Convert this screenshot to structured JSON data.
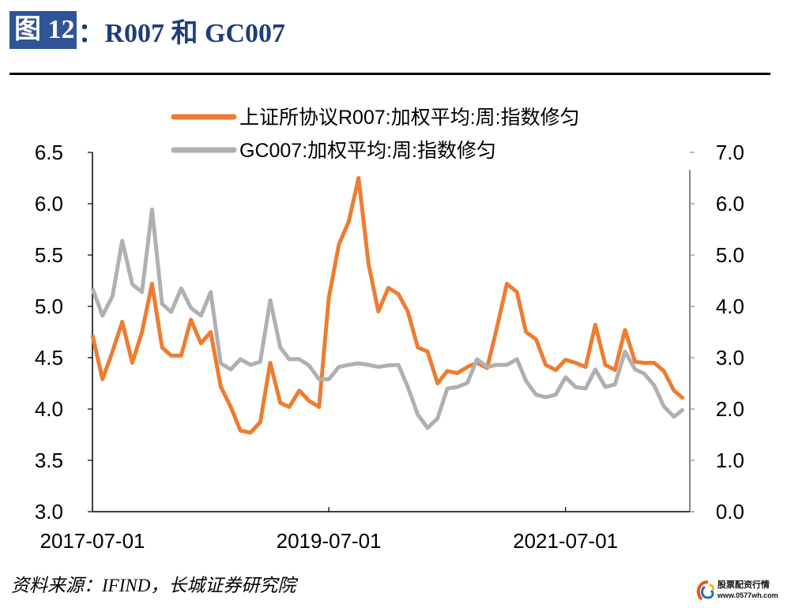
{
  "title": {
    "label": "图 12",
    "text": "：R007 和 GC007"
  },
  "source": "资料来源：IFIND，长城证券研究院",
  "logo": {
    "name": "股票配资行情",
    "url": "www.0577wh.com"
  },
  "colors": {
    "orange": "#ED7D31",
    "gray": "#B0B0B0",
    "title_bg": "#2F5597",
    "title_text": "#1F3D7A"
  },
  "chart_data": {
    "type": "line",
    "title": "",
    "legend_position": "top",
    "grid": false,
    "x_ticks": [
      "2017-07-01",
      "2019-07-01",
      "2021-07-01"
    ],
    "xlim": [
      "2017-07-01",
      "2022-07-20"
    ],
    "y_left": {
      "lim": [
        3.0,
        6.5
      ],
      "ticks": [
        "3.0",
        "3.5",
        "4.0",
        "4.5",
        "5.0",
        "5.5",
        "6.0",
        "6.5"
      ]
    },
    "y_right": {
      "lim": [
        0.0,
        7.0
      ],
      "ticks": [
        "0.0",
        "1.0",
        "2.0",
        "3.0",
        "4.0",
        "5.0",
        "6.0",
        "7.0"
      ]
    },
    "x": [
      "2017-07-01",
      "2017-08-01",
      "2017-09-01",
      "2017-10-01",
      "2017-11-01",
      "2017-12-01",
      "2018-01-01",
      "2018-02-01",
      "2018-03-01",
      "2018-04-01",
      "2018-05-01",
      "2018-06-01",
      "2018-07-01",
      "2018-08-01",
      "2018-09-01",
      "2018-10-01",
      "2018-11-01",
      "2018-12-01",
      "2019-01-01",
      "2019-02-01",
      "2019-03-01",
      "2019-04-01",
      "2019-05-01",
      "2019-06-01",
      "2019-07-01",
      "2019-08-01",
      "2019-09-01",
      "2019-10-01",
      "2019-11-01",
      "2019-12-01",
      "2020-01-01",
      "2020-02-01",
      "2020-03-01",
      "2020-04-01",
      "2020-05-01",
      "2020-06-01",
      "2020-07-01",
      "2020-08-01",
      "2020-09-01",
      "2020-10-01",
      "2020-11-01",
      "2020-12-01",
      "2021-01-01",
      "2021-02-01",
      "2021-03-01",
      "2021-04-01",
      "2021-05-01",
      "2021-06-01",
      "2021-07-01",
      "2021-08-01",
      "2021-09-01",
      "2021-10-01",
      "2021-11-01",
      "2021-12-01",
      "2022-01-01",
      "2022-02-01",
      "2022-03-01",
      "2022-04-01",
      "2022-05-01",
      "2022-06-01",
      "2022-07-01"
    ],
    "series": [
      {
        "name": "上证所协议R007:加权平均:周:指数修匀",
        "axis": "left",
        "color": "#ED7D31",
        "values": [
          4.72,
          4.29,
          4.56,
          4.85,
          4.45,
          4.75,
          5.22,
          4.6,
          4.52,
          4.52,
          4.87,
          4.64,
          4.75,
          4.22,
          4.02,
          3.79,
          3.77,
          3.87,
          4.45,
          4.06,
          4.02,
          4.18,
          4.08,
          4.02,
          5.08,
          5.6,
          5.83,
          6.25,
          5.41,
          4.95,
          5.18,
          5.12,
          4.95,
          4.6,
          4.56,
          4.25,
          4.37,
          4.35,
          4.41,
          4.45,
          4.4,
          4.79,
          5.22,
          5.14,
          4.75,
          4.68,
          4.43,
          4.38,
          4.48,
          4.45,
          4.41,
          4.82,
          4.43,
          4.38,
          4.77,
          4.46,
          4.45,
          4.45,
          4.37,
          4.18,
          4.1
        ]
      },
      {
        "name": "GC007:加权平均:周:指数修匀",
        "axis": "right",
        "color": "#B0B0B0",
        "values": [
          4.35,
          3.82,
          4.2,
          5.28,
          4.43,
          4.28,
          5.89,
          4.05,
          3.89,
          4.35,
          3.97,
          3.82,
          4.28,
          2.89,
          2.77,
          2.97,
          2.86,
          2.92,
          4.12,
          3.2,
          2.97,
          2.97,
          2.85,
          2.58,
          2.58,
          2.82,
          2.86,
          2.89,
          2.86,
          2.82,
          2.85,
          2.86,
          2.43,
          1.89,
          1.63,
          1.82,
          2.4,
          2.43,
          2.51,
          2.97,
          2.82,
          2.86,
          2.86,
          2.97,
          2.55,
          2.28,
          2.23,
          2.28,
          2.62,
          2.43,
          2.4,
          2.77,
          2.43,
          2.48,
          3.12,
          2.77,
          2.69,
          2.46,
          2.05,
          1.85,
          2.0
        ]
      }
    ]
  }
}
